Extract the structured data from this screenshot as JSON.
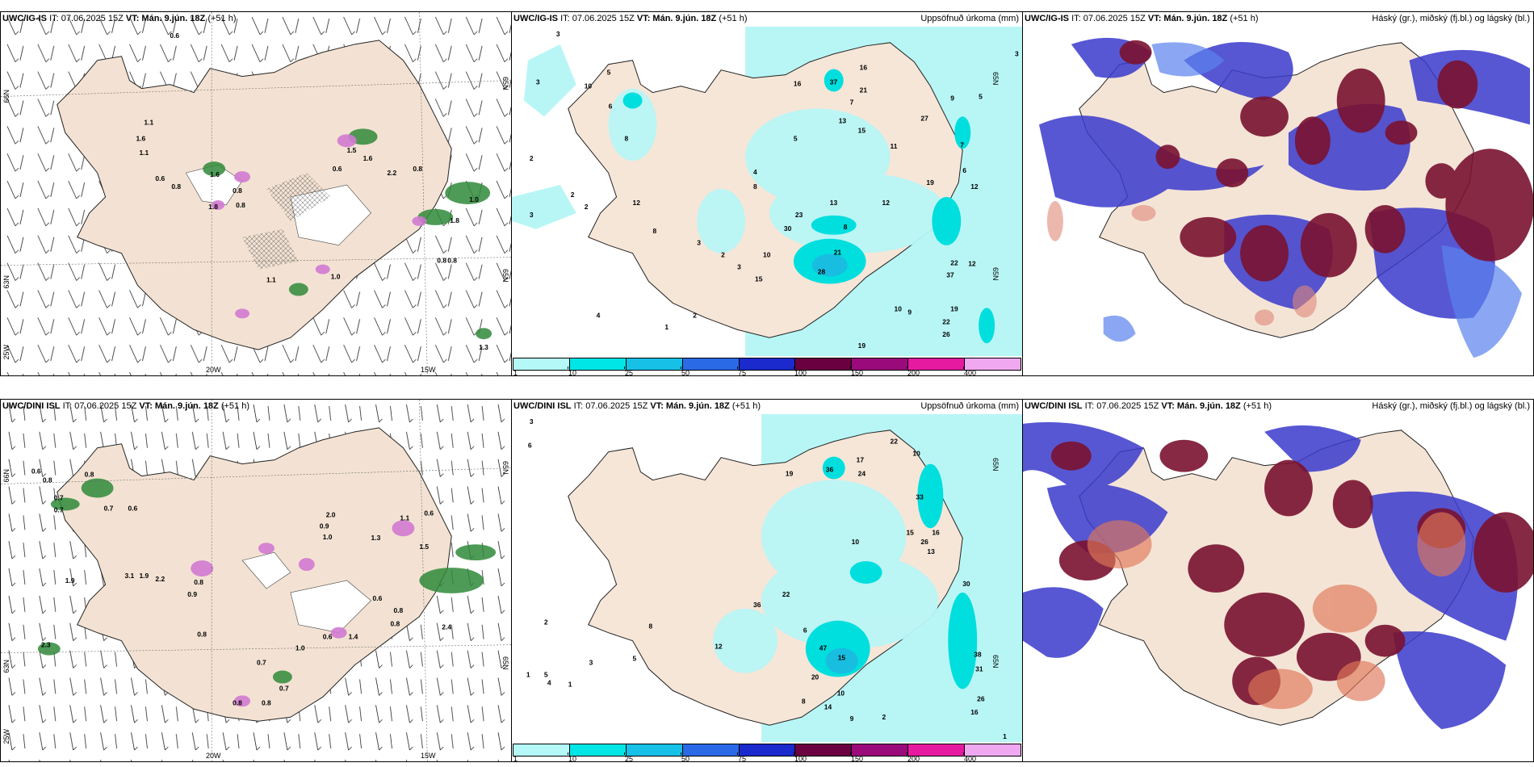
{
  "panels": [
    {
      "model": "UWC/IG-IS",
      "it_label": "IT: 07.06.2025 15Z",
      "vt_prefix": "VT:",
      "vt_value": "Mán. 9.jún. 18Z",
      "lead": "(+51 h)",
      "right_title": "",
      "lat_labels": [
        "66N",
        "65N",
        "63N",
        "65N"
      ],
      "lon_labels": [
        "25W",
        "20W",
        "15W"
      ],
      "values": [
        "0.6",
        "1.1",
        "1.6",
        "1.1",
        "0.6",
        "0.8",
        "1.6",
        "0.8",
        "1.8",
        "0.8",
        "1.6",
        "1.5",
        "0.6",
        "2.2",
        "0.8",
        "1.0",
        "1.8",
        "1.1",
        "1.0",
        "0.8",
        "0.8",
        "1.3"
      ]
    },
    {
      "model": "UWC/IG-IS",
      "it_label": "IT: 07.06.2025 15Z",
      "vt_prefix": "VT:",
      "vt_value": "Mán. 9.jún. 18Z",
      "lead": "(+51 h)",
      "right_title": "Uppsöfnuð úrkoma (mm)",
      "lat_labels": [
        "65N",
        "65N"
      ],
      "values": [
        "3",
        "3",
        "10",
        "5",
        "2",
        "8",
        "6",
        "2",
        "2",
        "3",
        "12",
        "8",
        "16",
        "37",
        "16",
        "21",
        "7",
        "13",
        "15",
        "5",
        "11",
        "27",
        "9",
        "5",
        "7",
        "6",
        "19",
        "12",
        "23",
        "30",
        "21",
        "28",
        "13",
        "10",
        "37",
        "22",
        "19",
        "22",
        "26",
        "19",
        "3",
        "1",
        "2",
        "3",
        "12",
        "4",
        "15",
        "12",
        "9",
        "8",
        "10",
        "4",
        "8",
        "3",
        "2"
      ]
    },
    {
      "model": "UWC/IG-IS",
      "it_label": "IT: 07.06.2025 15Z",
      "vt_prefix": "VT:",
      "vt_value": "Mán. 9.jún. 18Z",
      "lead": "(+51 h)",
      "right_title": "Háský (gr.), miðský (fj.bl.) og lágský (bl.)"
    },
    {
      "model": "UWC/DINI ISL",
      "it_label": "IT: 07.06.2025 15Z",
      "vt_prefix": "VT:",
      "vt_value": "Mán. 9.jún. 18Z",
      "lead": "(+51 h)",
      "right_title": "",
      "lat_labels": [
        "66N",
        "65N",
        "63N",
        "65N"
      ],
      "lon_labels": [
        "25W",
        "20W",
        "15W"
      ],
      "values": [
        "0.6",
        "0.8",
        "0.7",
        "0.7",
        "0.8",
        "0.7",
        "0.6",
        "3.1",
        "1.9",
        "2.2",
        "1.9",
        "2.3",
        "0.8",
        "0.9",
        "0.8",
        "2.0",
        "0.9",
        "1.0",
        "1.3",
        "1.1",
        "0.6",
        "1.5",
        "0.6",
        "0.8",
        "0.8",
        "0.7",
        "0.6",
        "1.4",
        "2.4",
        "1.0",
        "0.7",
        "0.8",
        "0.8"
      ]
    },
    {
      "model": "UWC/DINI ISL",
      "it_label": "IT: 07.06.2025 15Z",
      "vt_prefix": "VT:",
      "vt_value": "Mán. 9.jún. 18Z",
      "lead": "(+51 h)",
      "right_title": "Uppsöfnuð úrkoma (mm)",
      "lat_labels": [
        "65N",
        "65N"
      ],
      "values": [
        "3",
        "6",
        "2",
        "1",
        "5",
        "8",
        "19",
        "36",
        "17",
        "24",
        "22",
        "10",
        "33",
        "15",
        "26",
        "16",
        "13",
        "22",
        "30",
        "47",
        "15",
        "20",
        "10",
        "8",
        "12",
        "6",
        "3",
        "1",
        "4",
        "5",
        "14",
        "36",
        "38",
        "31",
        "26",
        "16",
        "9",
        "2",
        "1",
        "10"
      ]
    },
    {
      "model": "UWC/DINI ISL",
      "it_label": "IT: 07.06.2025 15Z",
      "vt_prefix": "VT:",
      "vt_value": "Mán. 9.jún. 18Z",
      "lead": "(+51 h)",
      "right_title": "Háský (gr.), miðský (fj.bl.) og lágský (bl.)"
    }
  ],
  "colorbar": {
    "ticks": [
      "1",
      "10",
      "25",
      "50",
      "75",
      "100",
      "150",
      "200",
      "400"
    ],
    "colors": [
      "#b5f8f8",
      "#00e6e6",
      "#17c0e6",
      "#2a6ae6",
      "#1a2acc",
      "#6a0040",
      "#9a0a7a",
      "#e61aa0",
      "#f0a8f0"
    ]
  },
  "colors": {
    "land": "#f5e6d8",
    "sea_precip": "#b7f6f6",
    "high_cloud": "#7a1230",
    "mid_cloud": "#3a3acc",
    "low_cloud": "#5a80ee",
    "wind_precip_green": "#1f7a2a",
    "wind_precip_magenta": "#d070d0"
  }
}
